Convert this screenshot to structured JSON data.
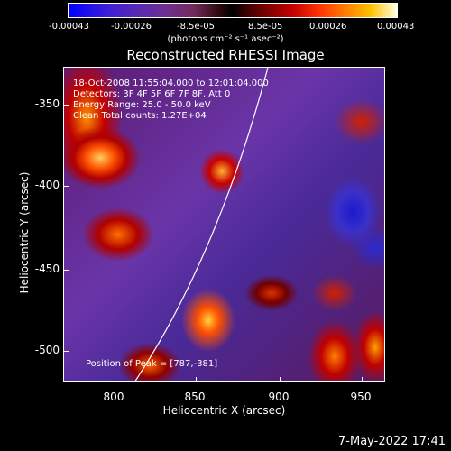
{
  "colorbar": {
    "ticks": [
      "-0.00043",
      "-0.00026",
      "-8.5e-05",
      "8.5e-05",
      "0.00026",
      "0.00043"
    ],
    "units": "(photons cm⁻² s⁻¹ asec⁻²)"
  },
  "plot": {
    "title": "Reconstructed RHESSI Image",
    "annotations": {
      "time": "18-Oct-2008 11:55:04.000 to 12:01:04.000",
      "detectors": "Detectors: 3F 4F 5F 6F 7F 8F, Att 0",
      "energy": "Energy Range: 25.0 - 50.0 keV",
      "clean": "Clean     Total counts: 1.27E+04",
      "peak": "Position of Peak = [787,-381]"
    },
    "y_axis": {
      "label": "Heliocentric Y (arcsec)",
      "ticks": [
        "-350",
        "-400",
        "-450",
        "-500"
      ]
    },
    "x_axis": {
      "label": "Heliocentric X (arcsec)",
      "ticks": [
        "800",
        "850",
        "900",
        "950"
      ]
    }
  },
  "footer": {
    "timestamp": "7-May-2022 17:41"
  }
}
